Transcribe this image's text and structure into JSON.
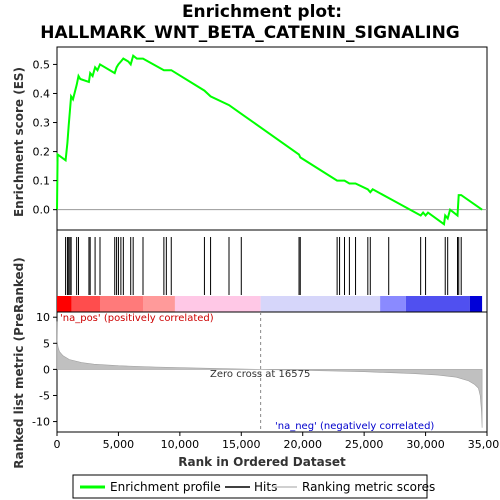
{
  "chart_data": {
    "type": "line",
    "title_line1": "Enrichment plot:",
    "title_line2": "HALLMARK_WNT_BETA_CATENIN_SIGNALING",
    "xlabel": "Rank in Ordered Dataset",
    "ylabel_top": "Enrichment score (ES)",
    "ylabel_bottom": "Ranked list metric (PreRanked)",
    "xlim": [
      0,
      35000
    ],
    "es_ylim": [
      -0.07,
      0.56
    ],
    "metric_ylim": [
      -12,
      11
    ],
    "x_ticks": [
      0,
      5000,
      10000,
      15000,
      20000,
      25000,
      30000,
      35000
    ],
    "x_tick_labels": [
      "0",
      "5,000",
      "10,000",
      "15,000",
      "20,000",
      "25,000",
      "30,000",
      "35,000"
    ],
    "es_ticks": [
      0.0,
      0.1,
      0.2,
      0.3,
      0.4,
      0.5
    ],
    "es_tick_labels": [
      "0.0",
      "0.1",
      "0.2",
      "0.3",
      "0.4",
      "0.5"
    ],
    "metric_ticks": [
      10,
      5,
      0,
      -5,
      -10
    ],
    "metric_tick_labels": [
      "10",
      "5",
      "0",
      "-5",
      "-10"
    ],
    "annotations": {
      "pos": "'na_pos' (positively correlated)",
      "neg": "'na_neg' (negatively correlated)",
      "zero_cross": "Zero cross at 16575"
    },
    "zero_cross": 16575,
    "series": [
      {
        "name": "Enrichment profile",
        "color": "#00ff00",
        "x": [
          0,
          50,
          700,
          850,
          950,
          1050,
          1150,
          1300,
          1600,
          1750,
          1900,
          2600,
          2700,
          2900,
          3100,
          3300,
          3500,
          4700,
          4850,
          5000,
          5200,
          5400,
          5800,
          6000,
          6200,
          6500,
          7000,
          8700,
          8900,
          9100,
          9300,
          12000,
          12500,
          14000,
          15000,
          19700,
          19800,
          22800,
          23000,
          23400,
          23800,
          24000,
          24300,
          25300,
          25500,
          25700,
          27000,
          29600,
          29800,
          30000,
          30200,
          31500,
          31600,
          31800,
          32000,
          32600,
          32700,
          32900,
          34600
        ],
        "y": [
          0.0,
          0.19,
          0.17,
          0.23,
          0.29,
          0.34,
          0.39,
          0.38,
          0.43,
          0.46,
          0.45,
          0.44,
          0.47,
          0.46,
          0.49,
          0.48,
          0.5,
          0.47,
          0.49,
          0.5,
          0.51,
          0.52,
          0.51,
          0.5,
          0.53,
          0.52,
          0.52,
          0.48,
          0.48,
          0.48,
          0.48,
          0.41,
          0.39,
          0.36,
          0.33,
          0.19,
          0.18,
          0.1,
          0.1,
          0.1,
          0.09,
          0.09,
          0.09,
          0.07,
          0.06,
          0.07,
          0.04,
          -0.02,
          -0.01,
          -0.02,
          -0.01,
          -0.05,
          -0.02,
          -0.03,
          -0.0,
          -0.02,
          0.05,
          0.05,
          0.0
        ]
      },
      {
        "name": "Hits",
        "color": "#000000",
        "x": [
          700,
          850,
          950,
          1050,
          1150,
          1600,
          1750,
          2600,
          2700,
          3100,
          3500,
          4700,
          4850,
          5000,
          5200,
          5400,
          6000,
          6200,
          7000,
          8700,
          8900,
          9300,
          12000,
          12500,
          14000,
          15000,
          19700,
          19800,
          22800,
          23000,
          23400,
          23800,
          24300,
          25300,
          25500,
          27000,
          29600,
          30000,
          31600,
          31800,
          32600,
          32700,
          32900
        ]
      },
      {
        "name": "Ranking metric scores",
        "color": "#c0c0c0",
        "x": [
          0,
          20,
          80,
          200,
          500,
          1000,
          2000,
          3000,
          5000,
          8000,
          12000,
          16575,
          20000,
          25000,
          29000,
          31000,
          32500,
          33500,
          34000,
          34300,
          34450,
          34550,
          34600
        ],
        "y": [
          9.2,
          5.5,
          4.3,
          3.4,
          2.6,
          1.9,
          1.3,
          1.0,
          0.7,
          0.45,
          0.22,
          0.0,
          -0.18,
          -0.45,
          -0.8,
          -1.1,
          -1.5,
          -2.2,
          -2.9,
          -3.6,
          -5.0,
          -8.0,
          -11.2
        ]
      }
    ],
    "legend": [
      "Enrichment profile",
      "Hits",
      "Ranking metric scores"
    ]
  }
}
